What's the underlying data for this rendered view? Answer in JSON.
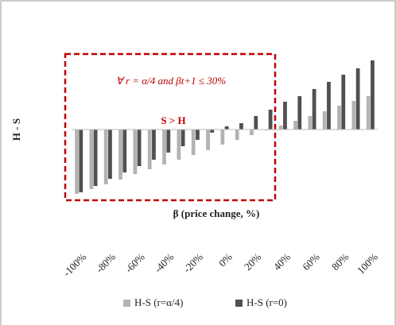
{
  "chart_data": {
    "type": "bar",
    "x_label": "β (price change, %)",
    "y_label": "H - S",
    "annotations": [
      "∀ r = α/4 and βt+1 ≤ 30%",
      "S > H"
    ],
    "categories": [
      "-100%",
      null,
      "-80%",
      null,
      "-60%",
      null,
      "-40%",
      null,
      "-20%",
      null,
      "0%",
      null,
      "20%",
      null,
      "40%",
      null,
      "60%",
      null,
      "80%",
      null,
      "100%"
    ],
    "series": [
      {
        "name": "H-S (r=α/4)",
        "color": "#b3b3b3",
        "values": [
          -81,
          -75,
          -69,
          -63,
          -56,
          -50,
          -44,
          -38,
          -32,
          -26,
          -19,
          -13,
          -7,
          -1,
          5,
          11,
          17,
          23,
          30,
          36,
          42
        ]
      },
      {
        "name": "H-S (r=0)",
        "color": "#505050",
        "values": [
          -79,
          -71,
          -62,
          -54,
          -46,
          -38,
          -29,
          -21,
          -13,
          -4,
          4,
          8,
          17,
          25,
          35,
          42,
          51,
          60,
          69,
          77,
          87
        ]
      }
    ],
    "ylim": [
      -90,
      90
    ],
    "legend": "bottom"
  }
}
